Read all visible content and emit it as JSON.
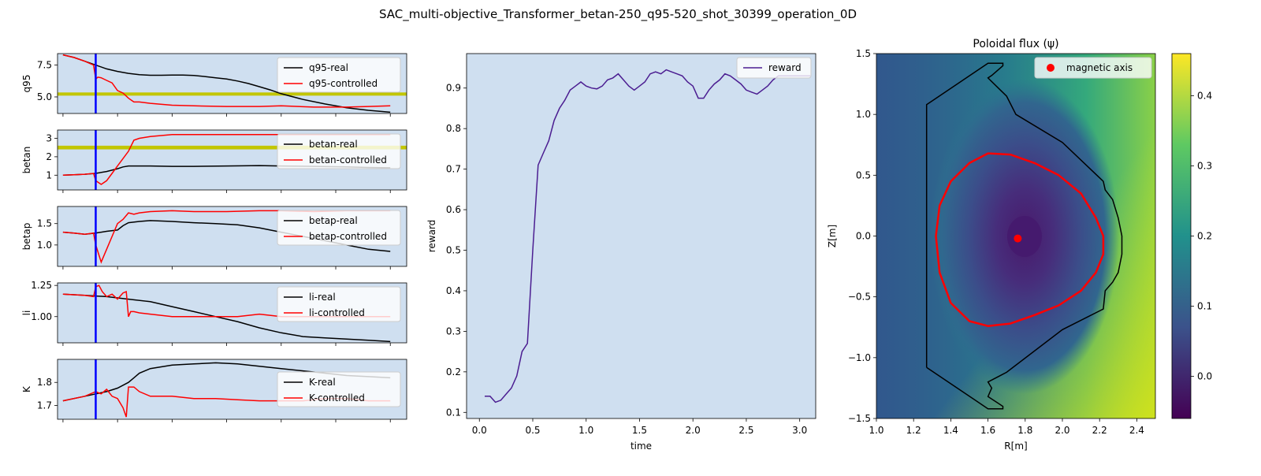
{
  "figure": {
    "suptitle": "SAC_multi-objective_Transformer_betan-250_q95-520_shot_30399_operation_0D"
  },
  "colors": {
    "axes_bg": "#cfdff0",
    "real": "#000000",
    "controlled": "#ff0000",
    "target_band": "#c2c600",
    "cursor": "#0000ff",
    "reward_line": "#4b1d91",
    "boundary": "#ff0000",
    "wall": "#000000",
    "axis_marker": "#ff0000"
  },
  "chart_data": [
    {
      "type": "line",
      "ylabel": "q95",
      "xlim": [
        -0.05,
        3.15
      ],
      "ylim": [
        3.7,
        8.4
      ],
      "yticks": [
        5.0,
        7.5
      ],
      "ytick_labels": [
        "5.0",
        "7.5"
      ],
      "target_band": [
        5.1,
        5.35
      ],
      "cursor_x": 0.3,
      "legend": {
        "loc": "upper right"
      },
      "series": [
        {
          "name": "q95-real",
          "role": "real",
          "x": [
            0.0,
            0.1,
            0.2,
            0.3,
            0.4,
            0.5,
            0.6,
            0.7,
            0.8,
            0.9,
            1.0,
            1.1,
            1.2,
            1.3,
            1.4,
            1.5,
            1.6,
            1.7,
            1.8,
            1.9,
            2.0,
            2.2,
            2.4,
            2.6,
            2.8,
            3.0
          ],
          "y": [
            8.3,
            8.1,
            7.8,
            7.5,
            7.2,
            7.0,
            6.85,
            6.75,
            6.7,
            6.7,
            6.72,
            6.72,
            6.68,
            6.6,
            6.5,
            6.4,
            6.25,
            6.05,
            5.8,
            5.55,
            5.25,
            4.8,
            4.45,
            4.15,
            3.95,
            3.8
          ]
        },
        {
          "name": "q95-controlled",
          "role": "controlled",
          "x": [
            0.0,
            0.1,
            0.2,
            0.28,
            0.3,
            0.32,
            0.35,
            0.4,
            0.45,
            0.5,
            0.55,
            0.6,
            0.65,
            0.7,
            0.8,
            1.0,
            1.2,
            1.5,
            1.8,
            2.0,
            2.3,
            2.6,
            2.8,
            3.0
          ],
          "y": [
            8.3,
            8.1,
            7.8,
            7.5,
            6.4,
            6.55,
            6.5,
            6.3,
            6.1,
            5.5,
            5.3,
            4.9,
            4.6,
            4.6,
            4.5,
            4.35,
            4.3,
            4.25,
            4.25,
            4.3,
            4.2,
            4.2,
            4.25,
            4.3
          ]
        }
      ]
    },
    {
      "type": "line",
      "ylabel": "betan",
      "xlim": [
        -0.05,
        3.15
      ],
      "ylim": [
        0.2,
        3.45
      ],
      "yticks": [
        1,
        2,
        3
      ],
      "ytick_labels": [
        "1",
        "2",
        "3"
      ],
      "target_band": [
        2.4,
        2.6
      ],
      "cursor_x": 0.3,
      "legend": {
        "loc": "upper right"
      },
      "series": [
        {
          "name": "betan-real",
          "role": "real",
          "x": [
            0.0,
            0.1,
            0.2,
            0.3,
            0.4,
            0.5,
            0.55,
            0.6,
            0.7,
            0.8,
            1.0,
            1.2,
            1.5,
            1.8,
            2.0,
            2.3,
            2.6,
            2.8,
            3.0
          ],
          "y": [
            1.0,
            1.02,
            1.05,
            1.1,
            1.2,
            1.35,
            1.45,
            1.5,
            1.5,
            1.5,
            1.48,
            1.48,
            1.5,
            1.52,
            1.5,
            1.48,
            1.45,
            1.42,
            1.4
          ]
        },
        {
          "name": "betan-controlled",
          "role": "controlled",
          "x": [
            0.0,
            0.1,
            0.2,
            0.28,
            0.3,
            0.35,
            0.4,
            0.45,
            0.5,
            0.55,
            0.6,
            0.65,
            0.7,
            0.8,
            1.0,
            1.2,
            1.5,
            1.8,
            2.0,
            2.3,
            2.6,
            2.8,
            3.0
          ],
          "y": [
            1.0,
            1.02,
            1.05,
            1.1,
            0.7,
            0.5,
            0.7,
            1.1,
            1.5,
            1.9,
            2.3,
            2.9,
            3.0,
            3.1,
            3.2,
            3.2,
            3.2,
            3.2,
            3.2,
            3.2,
            3.2,
            3.2,
            3.2
          ]
        }
      ]
    },
    {
      "type": "line",
      "ylabel": "betap",
      "xlim": [
        -0.05,
        3.15
      ],
      "ylim": [
        0.5,
        1.9
      ],
      "yticks": [
        1.0,
        1.5
      ],
      "ytick_labels": [
        "1.0",
        "1.5"
      ],
      "cursor_x": 0.3,
      "legend": {
        "loc": "upper right"
      },
      "series": [
        {
          "name": "betap-real",
          "role": "real",
          "x": [
            0.0,
            0.1,
            0.2,
            0.3,
            0.4,
            0.5,
            0.55,
            0.6,
            0.7,
            0.8,
            1.0,
            1.2,
            1.4,
            1.6,
            1.8,
            2.0,
            2.2,
            2.4,
            2.6,
            2.8,
            3.0
          ],
          "y": [
            1.3,
            1.28,
            1.25,
            1.28,
            1.32,
            1.35,
            1.45,
            1.52,
            1.55,
            1.57,
            1.55,
            1.52,
            1.5,
            1.47,
            1.4,
            1.3,
            1.2,
            1.1,
            1.0,
            0.9,
            0.85
          ]
        },
        {
          "name": "betap-controlled",
          "role": "controlled",
          "x": [
            0.0,
            0.1,
            0.2,
            0.28,
            0.3,
            0.35,
            0.4,
            0.45,
            0.5,
            0.55,
            0.6,
            0.65,
            0.7,
            0.8,
            1.0,
            1.2,
            1.5,
            1.8,
            2.0,
            2.3,
            2.6,
            2.8,
            3.0
          ],
          "y": [
            1.3,
            1.28,
            1.25,
            1.28,
            1.0,
            0.6,
            0.9,
            1.2,
            1.5,
            1.6,
            1.75,
            1.72,
            1.75,
            1.78,
            1.8,
            1.78,
            1.78,
            1.8,
            1.8,
            1.78,
            1.8,
            1.8,
            1.8
          ]
        }
      ]
    },
    {
      "type": "line",
      "ylabel": "li",
      "xlim": [
        -0.05,
        3.15
      ],
      "ylim": [
        0.79,
        1.27
      ],
      "yticks": [
        1.0,
        1.25
      ],
      "ytick_labels": [
        "1.00",
        "1.25"
      ],
      "cursor_x": 0.3,
      "legend": {
        "loc": "upper right"
      },
      "series": [
        {
          "name": "li-real",
          "role": "real",
          "x": [
            0.0,
            0.2,
            0.4,
            0.5,
            0.6,
            0.8,
            1.0,
            1.2,
            1.4,
            1.6,
            1.8,
            2.0,
            2.2,
            2.4,
            2.6,
            2.8,
            3.0
          ],
          "y": [
            1.18,
            1.17,
            1.16,
            1.15,
            1.14,
            1.12,
            1.08,
            1.04,
            1.0,
            0.96,
            0.91,
            0.87,
            0.84,
            0.83,
            0.82,
            0.81,
            0.8
          ]
        },
        {
          "name": "li-controlled",
          "role": "controlled",
          "x": [
            0.0,
            0.2,
            0.28,
            0.3,
            0.33,
            0.36,
            0.4,
            0.45,
            0.5,
            0.55,
            0.58,
            0.6,
            0.62,
            0.65,
            0.7,
            0.8,
            1.0,
            1.2,
            1.4,
            1.6,
            1.8,
            2.0,
            2.2,
            2.4,
            2.6,
            2.8,
            3.0
          ],
          "y": [
            1.18,
            1.17,
            1.16,
            1.24,
            1.25,
            1.2,
            1.16,
            1.18,
            1.14,
            1.19,
            1.2,
            1.0,
            1.04,
            1.04,
            1.03,
            1.02,
            1.0,
            1.0,
            1.0,
            1.0,
            1.02,
            1.0,
            1.0,
            1.0,
            1.0,
            1.0,
            1.0
          ]
        }
      ]
    },
    {
      "type": "line",
      "ylabel": "K",
      "xlim": [
        -0.05,
        3.15
      ],
      "ylim": [
        1.64,
        1.9
      ],
      "yticks": [
        1.7,
        1.8
      ],
      "ytick_labels": [
        "1.7",
        "1.8"
      ],
      "cursor_x": 0.3,
      "legend": {
        "loc": "center right"
      },
      "series": [
        {
          "name": "K-real",
          "role": "real",
          "x": [
            0.0,
            0.2,
            0.3,
            0.4,
            0.5,
            0.6,
            0.65,
            0.7,
            0.8,
            1.0,
            1.2,
            1.4,
            1.6,
            1.8,
            2.0,
            2.2,
            2.4,
            2.6,
            2.8,
            3.0
          ],
          "y": [
            1.72,
            1.74,
            1.75,
            1.76,
            1.775,
            1.8,
            1.82,
            1.84,
            1.86,
            1.875,
            1.88,
            1.885,
            1.88,
            1.87,
            1.86,
            1.85,
            1.84,
            1.83,
            1.825,
            1.82
          ]
        },
        {
          "name": "K-controlled",
          "role": "controlled",
          "x": [
            0.0,
            0.2,
            0.3,
            0.35,
            0.4,
            0.45,
            0.5,
            0.55,
            0.58,
            0.6,
            0.65,
            0.7,
            0.8,
            1.0,
            1.2,
            1.4,
            1.6,
            1.8,
            2.0,
            2.2,
            2.4,
            2.6,
            2.8,
            3.0
          ],
          "y": [
            1.72,
            1.74,
            1.76,
            1.75,
            1.77,
            1.74,
            1.73,
            1.69,
            1.65,
            1.78,
            1.78,
            1.76,
            1.74,
            1.74,
            1.73,
            1.73,
            1.725,
            1.72,
            1.72,
            1.72,
            1.73,
            1.73,
            1.72,
            1.72
          ]
        }
      ]
    },
    {
      "type": "line",
      "xlabel": "time",
      "ylabel": "reward",
      "xlim": [
        -0.12,
        3.15
      ],
      "ylim": [
        0.085,
        0.985
      ],
      "xticks": [
        0.0,
        0.5,
        1.0,
        1.5,
        2.0,
        2.5,
        3.0
      ],
      "xtick_labels": [
        "0.0",
        "0.5",
        "1.0",
        "1.5",
        "2.0",
        "2.5",
        "3.0"
      ],
      "yticks": [
        0.1,
        0.2,
        0.3,
        0.4,
        0.5,
        0.6,
        0.7,
        0.8,
        0.9
      ],
      "ytick_labels": [
        "0.1",
        "0.2",
        "0.3",
        "0.4",
        "0.5",
        "0.6",
        "0.7",
        "0.8",
        "0.9"
      ],
      "legend": {
        "loc": "upper right"
      },
      "series": [
        {
          "name": "reward",
          "x": [
            0.05,
            0.1,
            0.15,
            0.2,
            0.25,
            0.3,
            0.35,
            0.4,
            0.45,
            0.5,
            0.55,
            0.6,
            0.65,
            0.7,
            0.75,
            0.8,
            0.85,
            0.9,
            0.95,
            1.0,
            1.05,
            1.1,
            1.15,
            1.2,
            1.25,
            1.3,
            1.35,
            1.4,
            1.45,
            1.5,
            1.55,
            1.6,
            1.65,
            1.7,
            1.75,
            1.8,
            1.85,
            1.9,
            1.95,
            2.0,
            2.05,
            2.1,
            2.15,
            2.2,
            2.25,
            2.3,
            2.35,
            2.4,
            2.45,
            2.5,
            2.55,
            2.6,
            2.65,
            2.7,
            2.75,
            2.8,
            2.85,
            2.9,
            2.95,
            3.0,
            3.05,
            3.1
          ],
          "y": [
            0.14,
            0.14,
            0.125,
            0.13,
            0.145,
            0.16,
            0.19,
            0.25,
            0.27,
            0.5,
            0.71,
            0.74,
            0.77,
            0.82,
            0.85,
            0.87,
            0.895,
            0.905,
            0.915,
            0.905,
            0.9,
            0.898,
            0.905,
            0.92,
            0.925,
            0.935,
            0.92,
            0.905,
            0.895,
            0.905,
            0.915,
            0.935,
            0.94,
            0.935,
            0.945,
            0.94,
            0.935,
            0.93,
            0.915,
            0.905,
            0.875,
            0.875,
            0.895,
            0.91,
            0.92,
            0.935,
            0.93,
            0.92,
            0.91,
            0.895,
            0.89,
            0.885,
            0.895,
            0.905,
            0.92,
            0.93,
            0.93,
            0.93,
            0.93,
            0.93,
            0.93,
            0.93
          ]
        }
      ]
    },
    {
      "type": "heatmap",
      "title": "Poloidal flux (ψ)",
      "xlabel": "R[m]",
      "ylabel": "Z[m]",
      "xlim": [
        1.0,
        2.5
      ],
      "ylim": [
        -1.5,
        1.5
      ],
      "xticks": [
        1.0,
        1.2,
        1.4,
        1.6,
        1.8,
        2.0,
        2.2,
        2.4
      ],
      "xtick_labels": [
        "1.0",
        "1.2",
        "1.4",
        "1.6",
        "1.8",
        "2.0",
        "2.2",
        "2.4"
      ],
      "yticks": [
        -1.5,
        -1.0,
        -0.5,
        0.0,
        0.5,
        1.0,
        1.5
      ],
      "ytick_labels": [
        "−1.5",
        "−1.0",
        "−0.5",
        "0.0",
        "0.5",
        "1.0",
        "1.5"
      ],
      "colormap": "viridis",
      "clim": [
        -0.06,
        0.46
      ],
      "colorbar_ticks": [
        0.0,
        0.1,
        0.2,
        0.3,
        0.4
      ],
      "colorbar_tick_labels": [
        "0.0",
        "0.1",
        "0.2",
        "0.3",
        "0.4"
      ],
      "magnetic_axis": {
        "label": "magnetic axis",
        "R": 1.76,
        "Z": -0.02
      },
      "legend": {
        "loc": "upper right"
      },
      "wall": {
        "R": [
          1.27,
          1.27,
          1.6,
          1.68,
          1.68,
          1.62,
          1.6,
          1.7,
          1.75,
          2.0,
          2.22,
          2.23,
          2.27,
          2.3,
          2.32,
          2.32,
          2.3,
          2.27,
          2.23,
          2.22,
          2.0,
          1.7,
          1.6,
          1.62,
          1.6,
          1.68,
          1.68,
          1.6,
          1.27
        ],
        "Z": [
          -1.08,
          1.08,
          1.42,
          1.42,
          1.4,
          1.32,
          1.3,
          1.15,
          1.0,
          0.77,
          0.45,
          0.38,
          0.3,
          0.15,
          0.0,
          -0.15,
          -0.3,
          -0.38,
          -0.45,
          -0.6,
          -0.77,
          -1.12,
          -1.2,
          -1.25,
          -1.32,
          -1.4,
          -1.42,
          -1.42,
          -1.08
        ]
      },
      "plasma_boundary": {
        "R": [
          1.32,
          1.34,
          1.4,
          1.5,
          1.6,
          1.72,
          1.85,
          1.98,
          2.1,
          2.18,
          2.22,
          2.22,
          2.18,
          2.1,
          1.98,
          1.85,
          1.72,
          1.6,
          1.5,
          1.4,
          1.34,
          1.32
        ],
        "Z": [
          0.0,
          0.25,
          0.45,
          0.6,
          0.68,
          0.67,
          0.6,
          0.5,
          0.35,
          0.15,
          0.0,
          -0.15,
          -0.3,
          -0.45,
          -0.57,
          -0.65,
          -0.72,
          -0.74,
          -0.7,
          -0.55,
          -0.3,
          0.0
        ]
      }
    }
  ]
}
